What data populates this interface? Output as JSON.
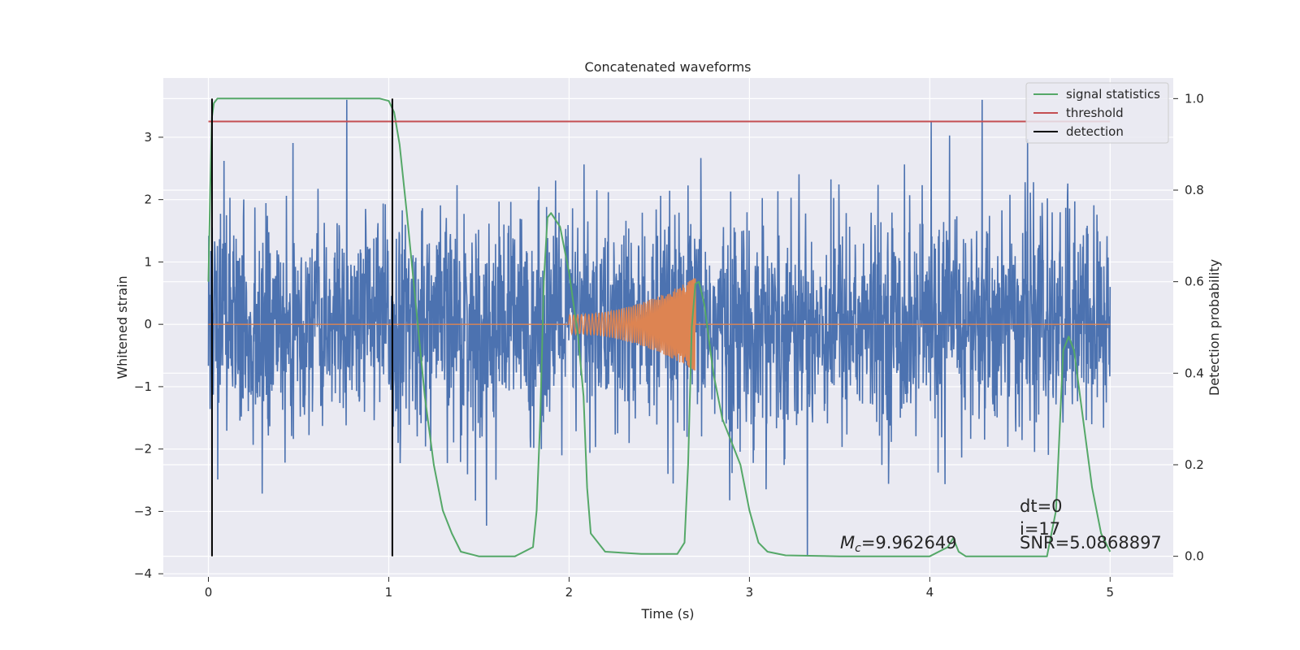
{
  "chart_data": {
    "type": "line",
    "title": "Concatenated waveforms",
    "xlabel": "Time (s)",
    "ylabel_left": "Whitened strain",
    "ylabel_right": "Detection probability",
    "xlim": [
      -0.25,
      5.35
    ],
    "ylim_left": [
      -4.05,
      3.95
    ],
    "ylim_right": [
      -0.045,
      1.045
    ],
    "x_ticks": [
      "0",
      "1",
      "2",
      "3",
      "4",
      "5"
    ],
    "y_ticks_left": [
      "3",
      "2",
      "1",
      "0",
      "−1",
      "−2",
      "−3",
      "−4"
    ],
    "y_ticks_right": [
      "1.0",
      "0.8",
      "0.6",
      "0.4",
      "0.2",
      "0.0"
    ],
    "grid": true,
    "background": "#eaeaf2",
    "legend_position": "top-right",
    "series": [
      {
        "name": "strain",
        "axis": "left",
        "color": "#4c72b0",
        "kind": "noise",
        "x_range": [
          0,
          5
        ],
        "envelope_typical": 1.7,
        "peak_max": 3.6,
        "peak_min": -3.7
      },
      {
        "name": "template",
        "axis": "left",
        "color": "#dd8452",
        "kind": "chirp",
        "x_range": [
          0,
          5
        ],
        "chirp_start": 2.0,
        "chirp_end": 2.7,
        "amp_start": 0.15,
        "amp_end": 0.75
      },
      {
        "name": "signal statistics",
        "axis": "right",
        "color": "#55a868",
        "x": [
          0.0,
          0.01,
          0.02,
          0.03,
          0.05,
          0.08,
          0.2,
          0.5,
          0.8,
          0.95,
          1.0,
          1.03,
          1.06,
          1.1,
          1.15,
          1.2,
          1.25,
          1.3,
          1.35,
          1.4,
          1.5,
          1.7,
          1.8,
          1.82,
          1.84,
          1.86,
          1.88,
          1.9,
          1.95,
          2.0,
          2.05,
          2.08,
          2.1,
          2.12,
          2.2,
          2.4,
          2.6,
          2.64,
          2.66,
          2.68,
          2.7,
          2.72,
          2.75,
          2.8,
          2.85,
          2.9,
          2.95,
          3.0,
          3.05,
          3.1,
          3.2,
          3.5,
          4.0,
          4.1,
          4.13,
          4.16,
          4.2,
          4.5,
          4.65,
          4.7,
          4.74,
          4.77,
          4.8,
          4.85,
          4.9,
          4.95,
          5.0
        ],
        "values": [
          0.6,
          0.8,
          0.96,
          0.99,
          1.0,
          1.0,
          1.0,
          1.0,
          1.0,
          1.0,
          0.995,
          0.97,
          0.9,
          0.75,
          0.55,
          0.35,
          0.2,
          0.1,
          0.05,
          0.01,
          0.0,
          0.0,
          0.02,
          0.1,
          0.3,
          0.6,
          0.74,
          0.75,
          0.72,
          0.62,
          0.48,
          0.35,
          0.15,
          0.05,
          0.01,
          0.005,
          0.005,
          0.03,
          0.2,
          0.5,
          0.595,
          0.6,
          0.55,
          0.4,
          0.3,
          0.25,
          0.2,
          0.1,
          0.03,
          0.01,
          0.002,
          0.0,
          0.0,
          0.02,
          0.04,
          0.01,
          0.0,
          0.0,
          0.0,
          0.1,
          0.45,
          0.48,
          0.45,
          0.3,
          0.15,
          0.05,
          0.01
        ]
      },
      {
        "name": "threshold",
        "axis": "right",
        "color": "#c44e52",
        "x": [
          0.0,
          5.0
        ],
        "values": [
          0.95,
          0.95
        ]
      },
      {
        "name": "detection",
        "axis": "right",
        "color": "#000000",
        "kind": "vlines",
        "x": [
          0.02,
          1.02
        ],
        "values": [
          0.0,
          1.0
        ]
      }
    ],
    "annotations": {
      "chirp_mass": "M_c=9.962649",
      "dt": "dt=0",
      "index": "i=17",
      "snr": "SNR=5.0868897"
    }
  }
}
